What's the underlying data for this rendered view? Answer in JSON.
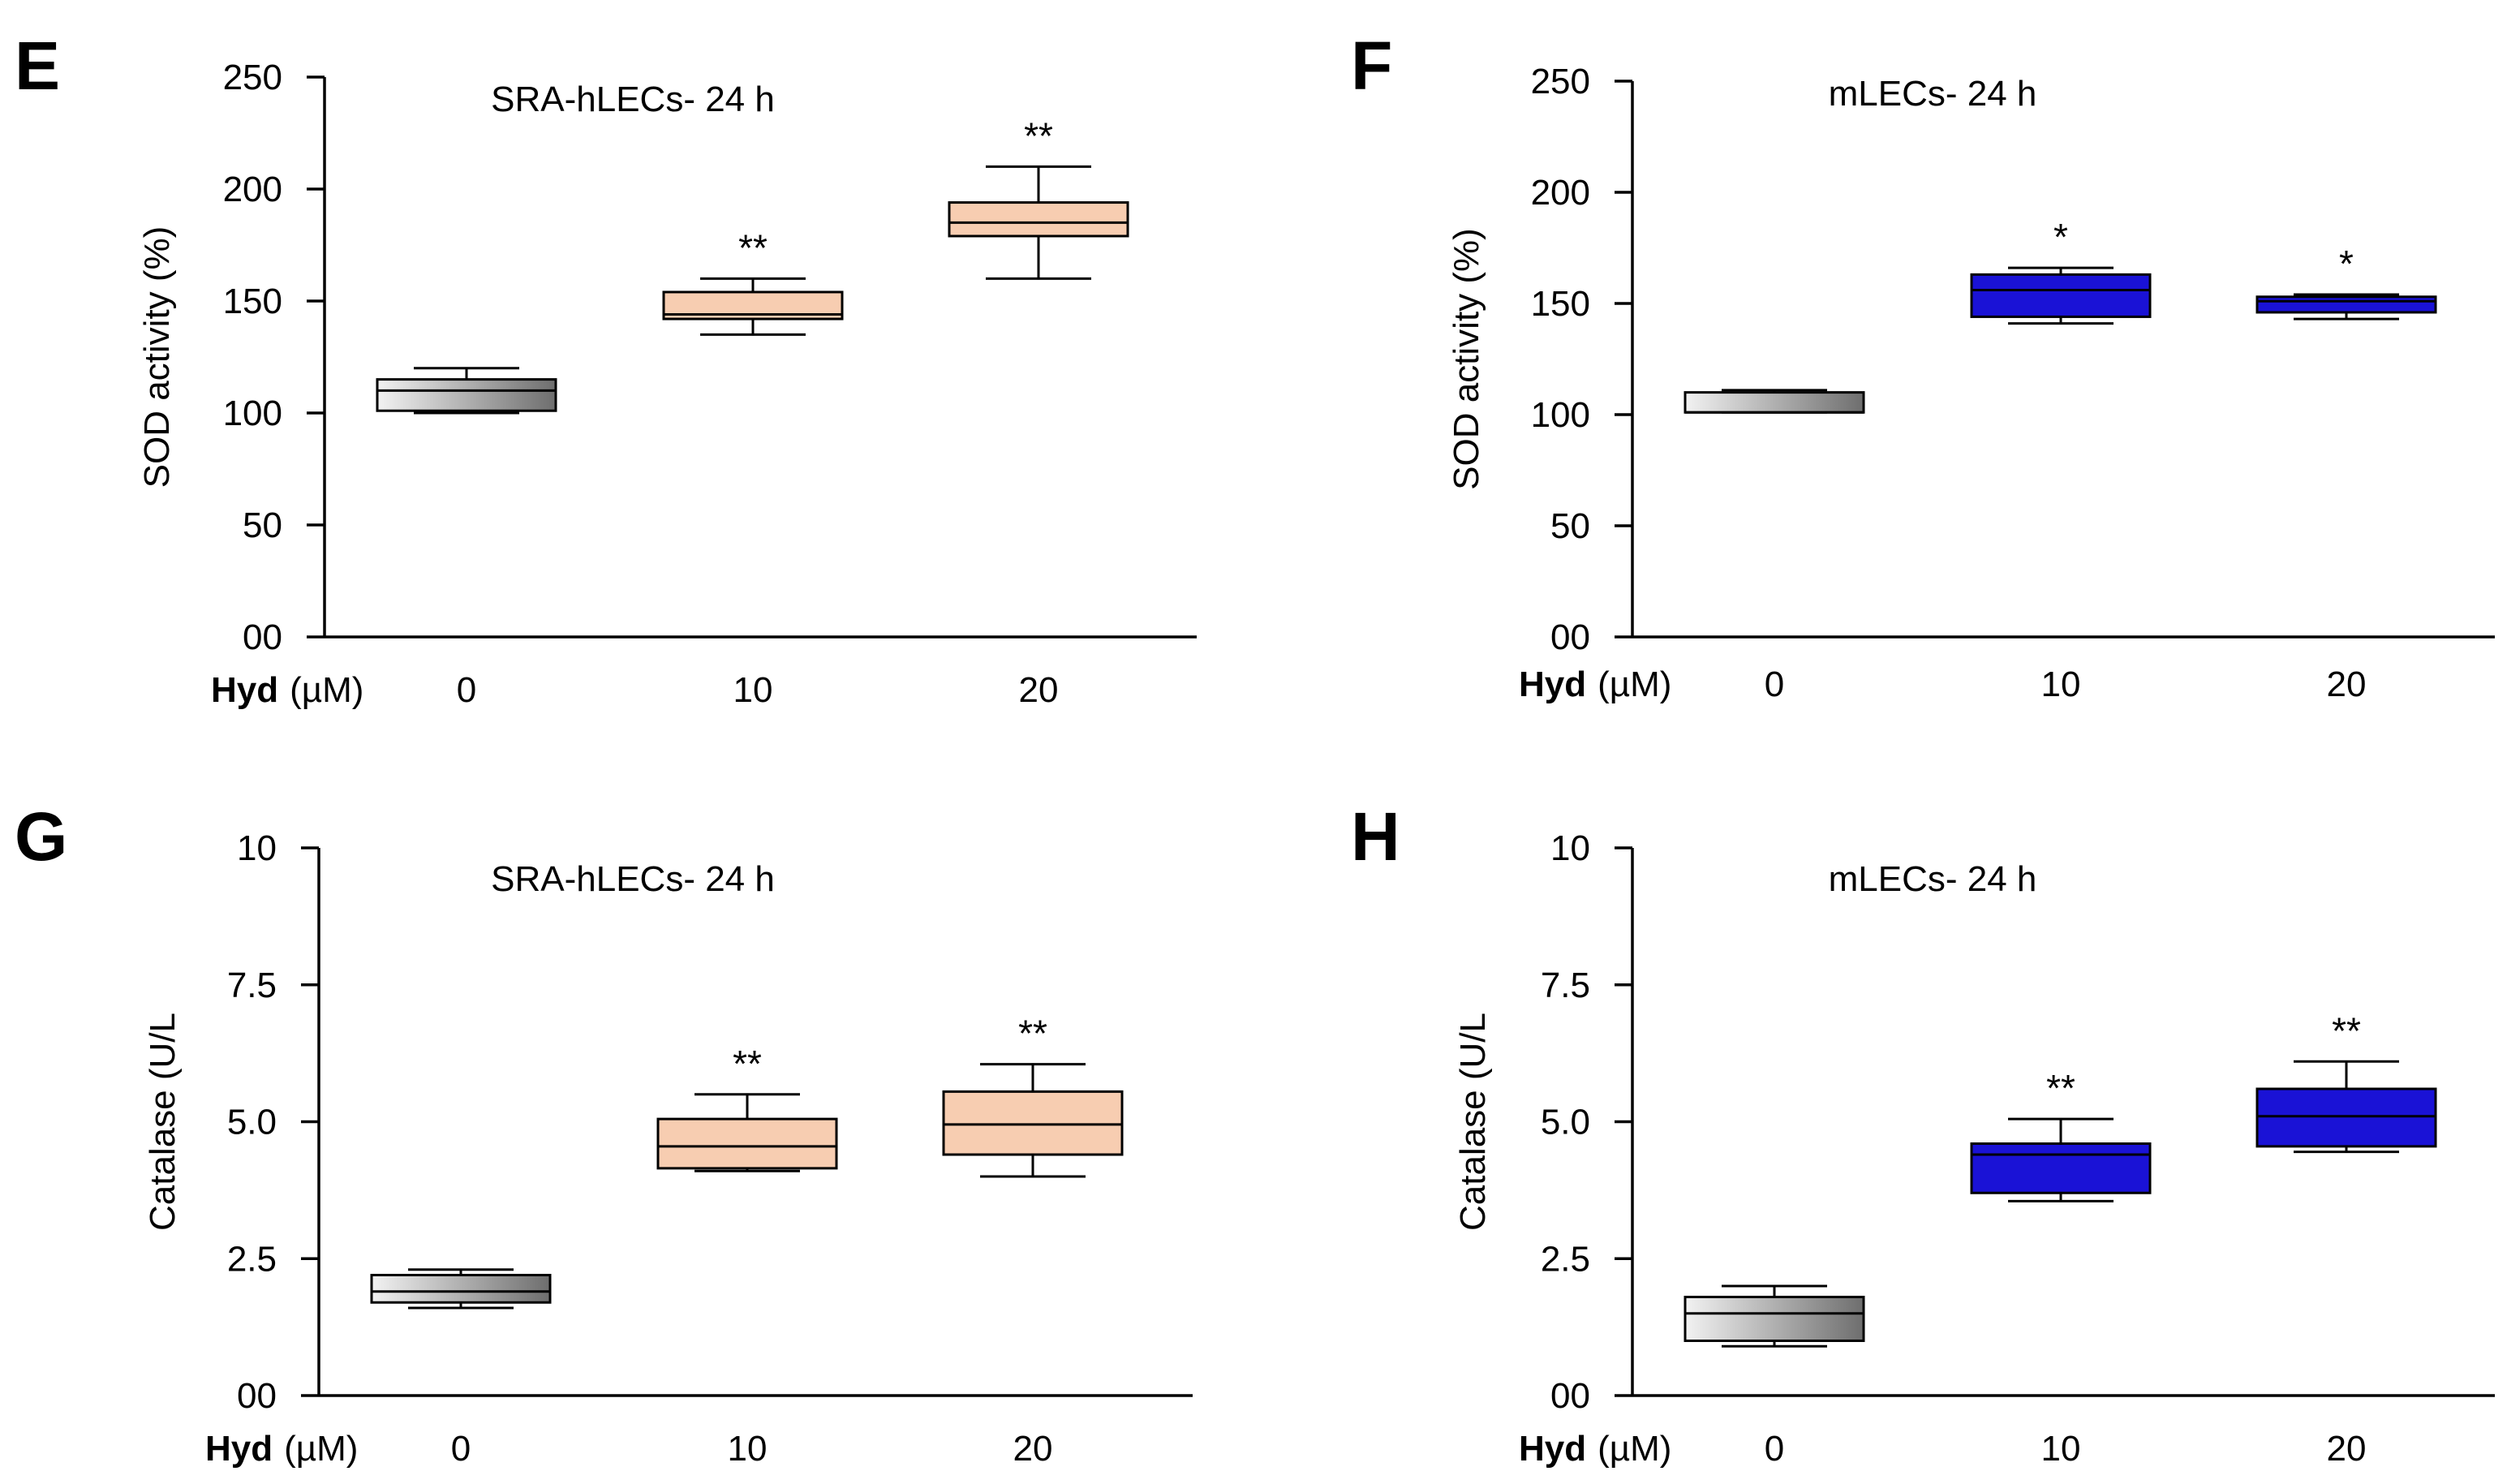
{
  "colors": {
    "gray_light": "#f2f2f2",
    "gray_dark": "#6e6e6e",
    "peach": "#f7cdb1",
    "blue": "#1a12d6",
    "axis": "#000000"
  },
  "chart_data": [
    {
      "panel": "E",
      "type": "box",
      "title": "SRA-hLECs- 24 h",
      "ylabel": "SOD activity (%)",
      "xlabel_bold": "Hyd",
      "xlabel_unit": "(µM)",
      "ylim": [
        0,
        250
      ],
      "yticks": [
        0,
        50,
        100,
        150,
        200,
        250
      ],
      "ytick_labels": [
        "00",
        "50",
        "100",
        "150",
        "200",
        "250"
      ],
      "categories": [
        "0",
        "10",
        "20"
      ],
      "boxes": [
        {
          "category": "0",
          "min": 100,
          "q1": 101,
          "median": 110,
          "q3": 115,
          "max": 120,
          "fill": "gray",
          "sig": ""
        },
        {
          "category": "10",
          "min": 135,
          "q1": 142,
          "median": 144,
          "q3": 154,
          "max": 160,
          "fill": "peach",
          "sig": "**"
        },
        {
          "category": "20",
          "min": 160,
          "q1": 179,
          "median": 185,
          "q3": 194,
          "max": 210,
          "fill": "peach",
          "sig": "**"
        }
      ]
    },
    {
      "panel": "F",
      "type": "box",
      "title": "mLECs- 24 h",
      "ylabel": "SOD activity (%)",
      "xlabel_bold": "Hyd",
      "xlabel_unit": "(µM)",
      "ylim": [
        0,
        250
      ],
      "yticks": [
        0,
        50,
        100,
        150,
        200,
        250
      ],
      "ytick_labels": [
        "00",
        "50",
        "100",
        "150",
        "200",
        "250"
      ],
      "categories": [
        "0",
        "10",
        "20"
      ],
      "boxes": [
        {
          "category": "0",
          "min": 101,
          "q1": 101,
          "median": 101,
          "q3": 110,
          "max": 111,
          "fill": "gray",
          "sig": ""
        },
        {
          "category": "10",
          "min": 141,
          "q1": 144,
          "median": 156,
          "q3": 163,
          "max": 166,
          "fill": "blue",
          "sig": "*"
        },
        {
          "category": "20",
          "min": 143,
          "q1": 146,
          "median": 151,
          "q3": 153,
          "max": 154,
          "fill": "blue",
          "sig": "*"
        }
      ]
    },
    {
      "panel": "G",
      "type": "box",
      "title": "SRA-hLECs- 24 h",
      "ylabel": "Catalase (U/L",
      "xlabel_bold": "Hyd",
      "xlabel_unit": "(µM)",
      "ylim": [
        0,
        10
      ],
      "yticks": [
        0,
        2.5,
        5.0,
        7.5,
        10
      ],
      "ytick_labels": [
        "00",
        "2.5",
        "5.0",
        "7.5",
        "10"
      ],
      "categories": [
        "0",
        "10",
        "20"
      ],
      "boxes": [
        {
          "category": "0",
          "min": 1.6,
          "q1": 1.7,
          "median": 1.9,
          "q3": 2.2,
          "max": 2.3,
          "fill": "gray",
          "sig": ""
        },
        {
          "category": "10",
          "min": 4.1,
          "q1": 4.15,
          "median": 4.55,
          "q3": 5.05,
          "max": 5.5,
          "fill": "peach",
          "sig": "**"
        },
        {
          "category": "20",
          "min": 4.0,
          "q1": 4.4,
          "median": 4.95,
          "q3": 5.55,
          "max": 6.05,
          "fill": "peach",
          "sig": "**"
        }
      ]
    },
    {
      "panel": "H",
      "type": "box",
      "title": "mLECs- 24 h",
      "ylabel": "Catalase (U/L",
      "xlabel_bold": "Hyd",
      "xlabel_unit": "(µM)",
      "ylim": [
        0,
        10
      ],
      "yticks": [
        0,
        2.5,
        5.0,
        7.5,
        10
      ],
      "ytick_labels": [
        "00",
        "2.5",
        "5.0",
        "7.5",
        "10"
      ],
      "categories": [
        "0",
        "10",
        "20"
      ],
      "boxes": [
        {
          "category": "0",
          "min": 0.9,
          "q1": 1.0,
          "median": 1.5,
          "q3": 1.8,
          "max": 2.0,
          "fill": "gray",
          "sig": ""
        },
        {
          "category": "10",
          "min": 3.55,
          "q1": 3.7,
          "median": 4.4,
          "q3": 4.6,
          "max": 5.05,
          "fill": "blue",
          "sig": "**"
        },
        {
          "category": "20",
          "min": 4.45,
          "q1": 4.55,
          "median": 5.1,
          "q3": 5.6,
          "max": 6.1,
          "fill": "blue",
          "sig": "**"
        }
      ]
    }
  ]
}
